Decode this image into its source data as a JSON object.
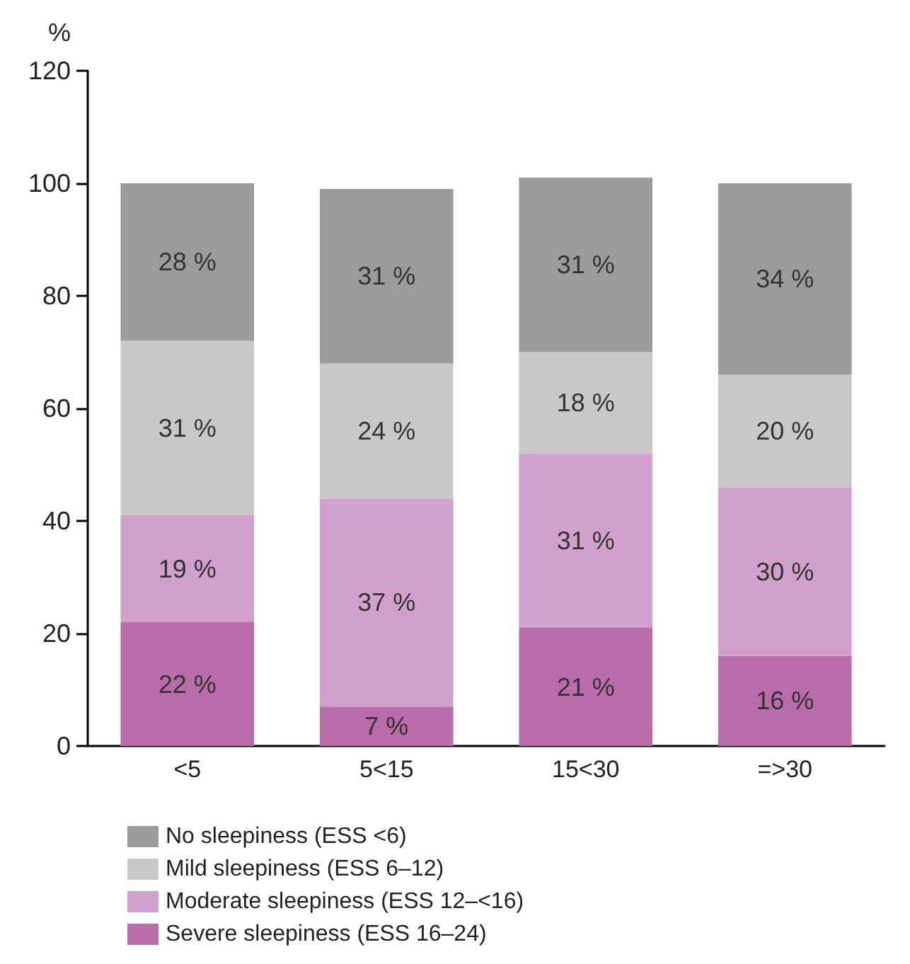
{
  "chart_data": {
    "type": "bar",
    "stacked": true,
    "ylabel": "%",
    "categories": [
      "<5",
      "5<15",
      "15<30",
      "=>30"
    ],
    "series": [
      {
        "name": "Severe sleepiness (ESS 16–24)",
        "color": "#b86ca9",
        "values": [
          22,
          7,
          21,
          16
        ],
        "value_labels": [
          "22 %",
          "7 %",
          "21 %",
          "16 %"
        ]
      },
      {
        "name": "Moderate sleepiness (ESS 12–<16)",
        "color": "#d2a0cc",
        "values": [
          19,
          37,
          31,
          30
        ],
        "value_labels": [
          "19 %",
          "37 %",
          "31 %",
          "30 %"
        ]
      },
      {
        "name": "Mild sleepiness (ESS 6–12)",
        "color": "#c8c8c8",
        "values": [
          31,
          24,
          18,
          20
        ],
        "value_labels": [
          "31 %",
          "24 %",
          "18 %",
          "20 %"
        ]
      },
      {
        "name": "No sleepiness (ESS <6)",
        "color": "#9b9b9b",
        "values": [
          28,
          31,
          31,
          34
        ],
        "value_labels": [
          "28 %",
          "31 %",
          "31 %",
          "34 %"
        ]
      }
    ],
    "ylim": [
      0,
      120
    ],
    "yticks": [
      0,
      20,
      40,
      60,
      80,
      100,
      120
    ],
    "grid": false,
    "legend": "bottom"
  }
}
